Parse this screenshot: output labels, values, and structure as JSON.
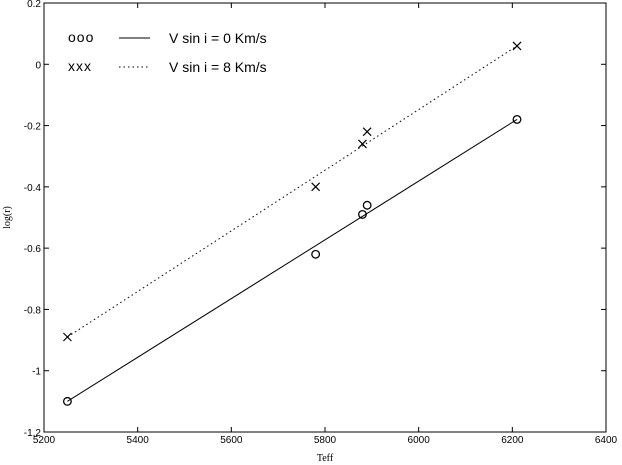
{
  "chart_data": {
    "type": "scatter",
    "xlabel": "Teff",
    "ylabel": "log(r)",
    "xlim": [
      5200,
      6400
    ],
    "ylim": [
      -1.2,
      0.2
    ],
    "xticks": [
      "5200",
      "5400",
      "5600",
      "5800",
      "6000",
      "6200",
      "6400"
    ],
    "yticks": [
      "0.2",
      "0",
      "-0.2",
      "-0.4",
      "-0.6",
      "-0.8",
      "-1",
      "-1.2"
    ],
    "grid": false,
    "legend_position": "top-left",
    "series": [
      {
        "name": "V sin i = 0 Km/s",
        "marker_label": "ooo",
        "marker": "circle",
        "line_style": "solid",
        "x": [
          5250,
          5780,
          5880,
          5890,
          6210
        ],
        "y": [
          -1.1,
          -0.62,
          -0.49,
          -0.46,
          -0.18
        ],
        "fit": {
          "x": [
            5250,
            6210
          ],
          "y": [
            -1.1,
            -0.18
          ]
        }
      },
      {
        "name": "V sin i = 8 Km/s",
        "marker_label": "xxx",
        "marker": "x",
        "line_style": "dotted",
        "x": [
          5250,
          5780,
          5880,
          5890,
          6210
        ],
        "y": [
          -0.89,
          -0.4,
          -0.26,
          -0.22,
          0.06
        ],
        "fit": {
          "x": [
            5250,
            6210
          ],
          "y": [
            -0.89,
            0.06
          ]
        }
      }
    ]
  }
}
